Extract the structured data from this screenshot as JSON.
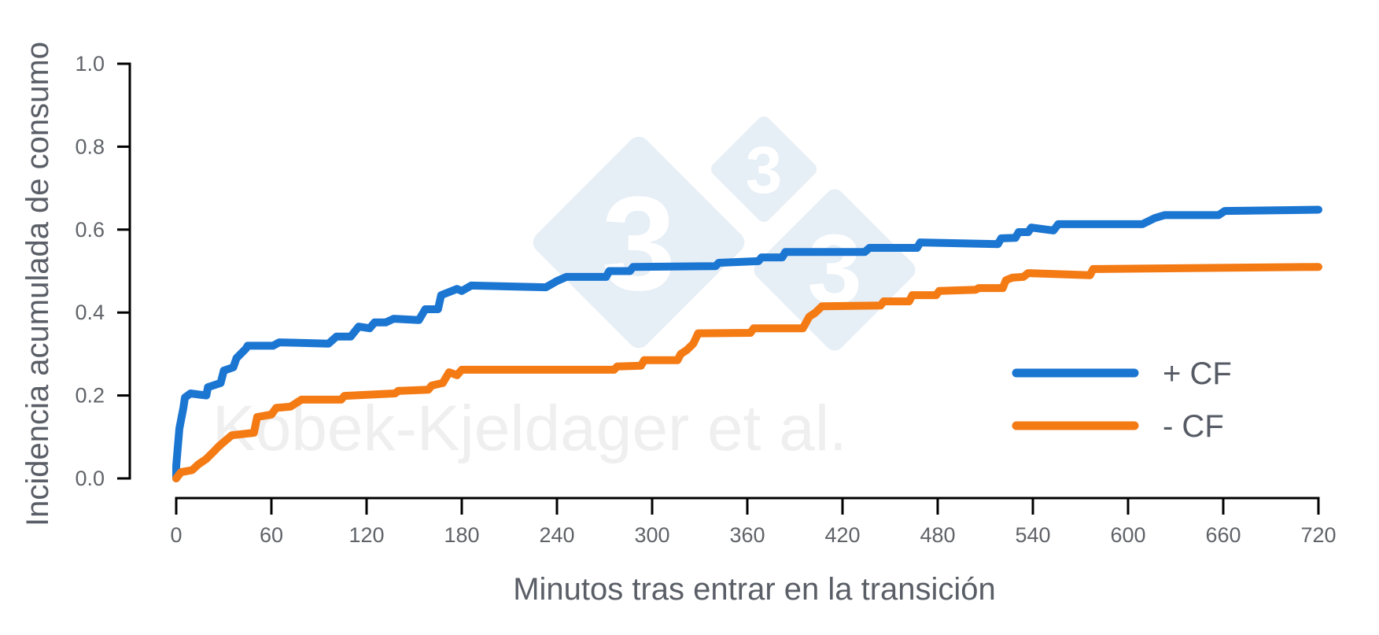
{
  "colors": {
    "series_plus_cf": "#1b76d2",
    "series_minus_cf": "#f47a14",
    "axis": "#000000",
    "text": "#5a5e66",
    "watermark_logo": "#e6eef6",
    "watermark_text": "#efefef"
  },
  "watermark": {
    "text": "Kobek-Kjeldager et al.",
    "logo_digits": [
      "3",
      "3",
      "3"
    ]
  },
  "chart_data": {
    "type": "line",
    "title": "",
    "xlabel": "Minutos tras entrar en la transición",
    "ylabel": "Incidencia acumulada de consumo",
    "xlim": [
      0,
      720
    ],
    "ylim": [
      0,
      1.0
    ],
    "x_ticks": [
      0,
      60,
      120,
      180,
      240,
      300,
      360,
      420,
      480,
      540,
      600,
      660,
      720
    ],
    "y_ticks": [
      0.0,
      0.2,
      0.4,
      0.6,
      0.8,
      1.0
    ],
    "y_tick_labels": [
      "0.0",
      "0.2",
      "0.4",
      "0.6",
      "0.8",
      "1.0"
    ],
    "grid": false,
    "legend_position": "lower right",
    "series": [
      {
        "name": "+ CF",
        "color": "#1b76d2",
        "points": [
          [
            0,
            0
          ],
          [
            0,
            0.03
          ],
          [
            2,
            0.12
          ],
          [
            4.5,
            0.17
          ],
          [
            5.5,
            0.195
          ],
          [
            9,
            0.205
          ],
          [
            19,
            0.2
          ],
          [
            20,
            0.22
          ],
          [
            28,
            0.23
          ],
          [
            30,
            0.26
          ],
          [
            36,
            0.268
          ],
          [
            38,
            0.29
          ],
          [
            44,
            0.313
          ],
          [
            45,
            0.32
          ],
          [
            61,
            0.32
          ],
          [
            65,
            0.328
          ],
          [
            96,
            0.325
          ],
          [
            101,
            0.342
          ],
          [
            110,
            0.342
          ],
          [
            115,
            0.366
          ],
          [
            122,
            0.362
          ],
          [
            125,
            0.376
          ],
          [
            132,
            0.376
          ],
          [
            137,
            0.385
          ],
          [
            153,
            0.382
          ],
          [
            157,
            0.408
          ],
          [
            165,
            0.408
          ],
          [
            167,
            0.442
          ],
          [
            177,
            0.457
          ],
          [
            180,
            0.452
          ],
          [
            186,
            0.465
          ],
          [
            233,
            0.461
          ],
          [
            240,
            0.476
          ],
          [
            246,
            0.486
          ],
          [
            271,
            0.486
          ],
          [
            273,
            0.5
          ],
          [
            286,
            0.5
          ],
          [
            288,
            0.51
          ],
          [
            340,
            0.512
          ],
          [
            342,
            0.52
          ],
          [
            367,
            0.524
          ],
          [
            369,
            0.533
          ],
          [
            382,
            0.533
          ],
          [
            384,
            0.546
          ],
          [
            434,
            0.546
          ],
          [
            437,
            0.556
          ],
          [
            467,
            0.556
          ],
          [
            469,
            0.569
          ],
          [
            518,
            0.565
          ],
          [
            520,
            0.579
          ],
          [
            529,
            0.58
          ],
          [
            531,
            0.594
          ],
          [
            537,
            0.594
          ],
          [
            539,
            0.605
          ],
          [
            553,
            0.598
          ],
          [
            556,
            0.613
          ],
          [
            609,
            0.613
          ],
          [
            617,
            0.628
          ],
          [
            623,
            0.635
          ],
          [
            657,
            0.635
          ],
          [
            661,
            0.645
          ],
          [
            720,
            0.648
          ]
        ]
      },
      {
        "name": "- CF",
        "color": "#f47a14",
        "points": [
          [
            0,
            0
          ],
          [
            3,
            0.015
          ],
          [
            10,
            0.02
          ],
          [
            14,
            0.034
          ],
          [
            19,
            0.047
          ],
          [
            24,
            0.066
          ],
          [
            27,
            0.078
          ],
          [
            35,
            0.104
          ],
          [
            49,
            0.11
          ],
          [
            51,
            0.148
          ],
          [
            60,
            0.154
          ],
          [
            63,
            0.17
          ],
          [
            72,
            0.173
          ],
          [
            79,
            0.19
          ],
          [
            104,
            0.19
          ],
          [
            106,
            0.199
          ],
          [
            138,
            0.205
          ],
          [
            140,
            0.211
          ],
          [
            159,
            0.214
          ],
          [
            161,
            0.224
          ],
          [
            168,
            0.23
          ],
          [
            172,
            0.256
          ],
          [
            177,
            0.249
          ],
          [
            180,
            0.262
          ],
          [
            276,
            0.262
          ],
          [
            278,
            0.27
          ],
          [
            293,
            0.272
          ],
          [
            295,
            0.285
          ],
          [
            316,
            0.285
          ],
          [
            318,
            0.3
          ],
          [
            322,
            0.31
          ],
          [
            326,
            0.325
          ],
          [
            329,
            0.35
          ],
          [
            362,
            0.351
          ],
          [
            364,
            0.362
          ],
          [
            395,
            0.362
          ],
          [
            399,
            0.39
          ],
          [
            403,
            0.4
          ],
          [
            407,
            0.415
          ],
          [
            444,
            0.417
          ],
          [
            446,
            0.427
          ],
          [
            462,
            0.427
          ],
          [
            464,
            0.442
          ],
          [
            479,
            0.442
          ],
          [
            481,
            0.452
          ],
          [
            504,
            0.455
          ],
          [
            506,
            0.459
          ],
          [
            521,
            0.459
          ],
          [
            523,
            0.478
          ],
          [
            527,
            0.484
          ],
          [
            534,
            0.486
          ],
          [
            537,
            0.495
          ],
          [
            576,
            0.49
          ],
          [
            578,
            0.505
          ],
          [
            720,
            0.51
          ]
        ]
      }
    ]
  }
}
